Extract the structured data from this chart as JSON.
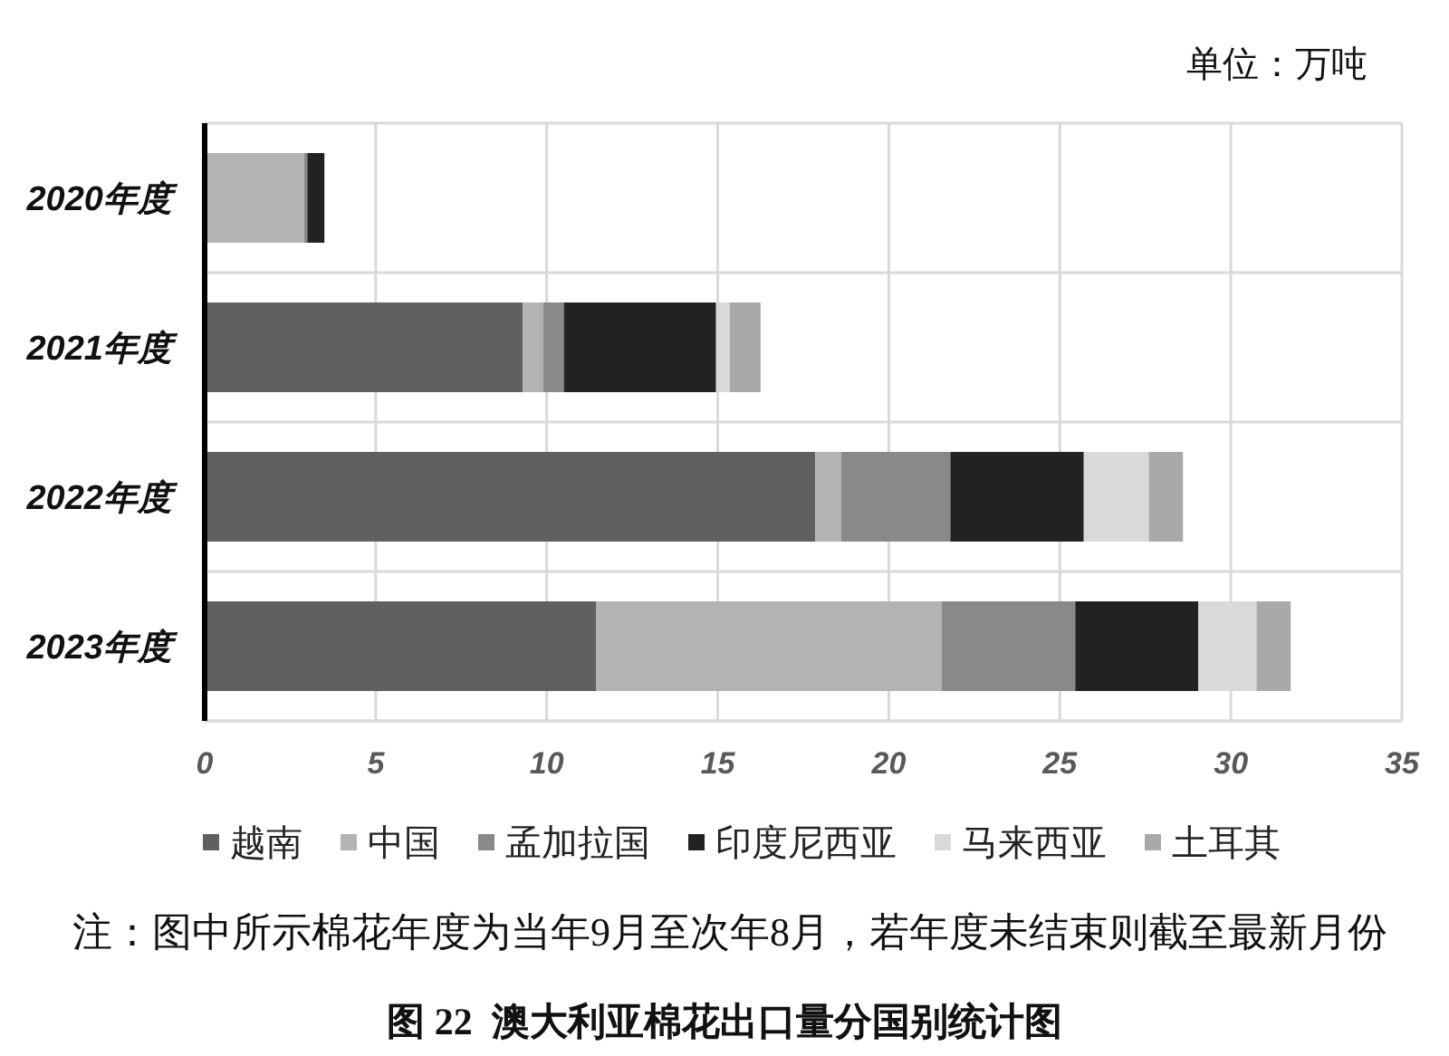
{
  "chart_data": {
    "type": "bar",
    "orientation": "horizontal",
    "stacked": true,
    "title": "图 22  澳大利亚棉花出口量分国别统计图",
    "categories": [
      "2020年度",
      "2021年度",
      "2022年度",
      "2023年度"
    ],
    "series": [
      {
        "name": "越南",
        "color": "#606060",
        "values": [
          0,
          9.3,
          17.85,
          11.45
        ]
      },
      {
        "name": "中国",
        "color": "#b3b3b3",
        "values": [
          2.9,
          0.6,
          0.75,
          10.1
        ]
      },
      {
        "name": "孟加拉国",
        "color": "#898989",
        "values": [
          0.1,
          0.6,
          3.2,
          3.9
        ]
      },
      {
        "name": "印度尼西亚",
        "color": "#222222",
        "values": [
          0.5,
          4.45,
          3.9,
          3.6
        ]
      },
      {
        "name": "马来西亚",
        "color": "#d9d9d9",
        "values": [
          0,
          0.4,
          1.9,
          1.7
        ]
      },
      {
        "name": "土耳其",
        "color": "#a9a9a9",
        "values": [
          0,
          0.9,
          1.0,
          1.0
        ]
      }
    ],
    "xlim": [
      0,
      35
    ],
    "xticks": [
      0,
      5,
      10,
      15,
      20,
      25,
      30,
      35
    ],
    "grid": true,
    "legend": "bottom",
    "annotations": [
      "单位：万吨",
      "注：图中所示棉花年度为当年9月至次年8月，若年度未结束则截至最新月份"
    ]
  }
}
